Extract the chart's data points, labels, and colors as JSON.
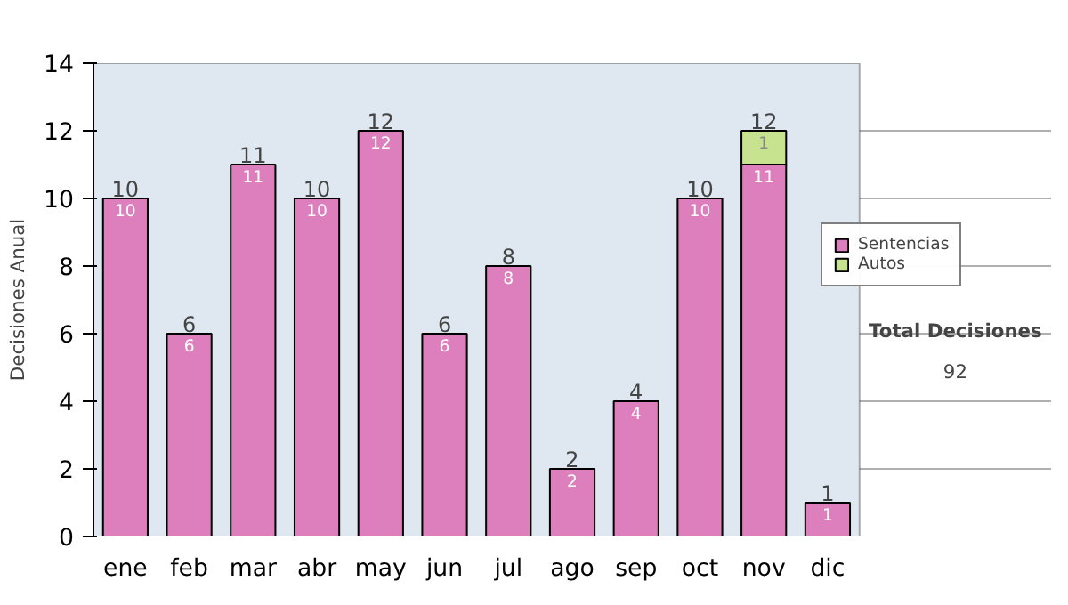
{
  "chart_data": {
    "type": "bar",
    "stacked": true,
    "ylabel": "Decisiones Anual",
    "categories": [
      "ene",
      "feb",
      "mar",
      "abr",
      "may",
      "jun",
      "jul",
      "ago",
      "sep",
      "oct",
      "nov",
      "dic"
    ],
    "series": [
      {
        "name": "Sentencias",
        "color": "#dd7fbc",
        "values": [
          10,
          6,
          11,
          10,
          12,
          6,
          8,
          2,
          4,
          10,
          11,
          1
        ]
      },
      {
        "name": "Autos",
        "color": "#c8e38f",
        "values": [
          null,
          null,
          null,
          null,
          null,
          null,
          null,
          null,
          null,
          null,
          1,
          null
        ]
      }
    ],
    "totals": [
      "10",
      "6",
      "11",
      "10",
      "12",
      "6",
      "8",
      "2",
      "4",
      "10",
      "12",
      "1"
    ],
    "data_labels": true,
    "ylim": [
      0,
      14
    ],
    "yticks": [
      0,
      2,
      4,
      6,
      8,
      10,
      12,
      14
    ],
    "grid": "y",
    "legend": "right",
    "annotations": [
      "Total Decisiones",
      "92"
    ]
  }
}
